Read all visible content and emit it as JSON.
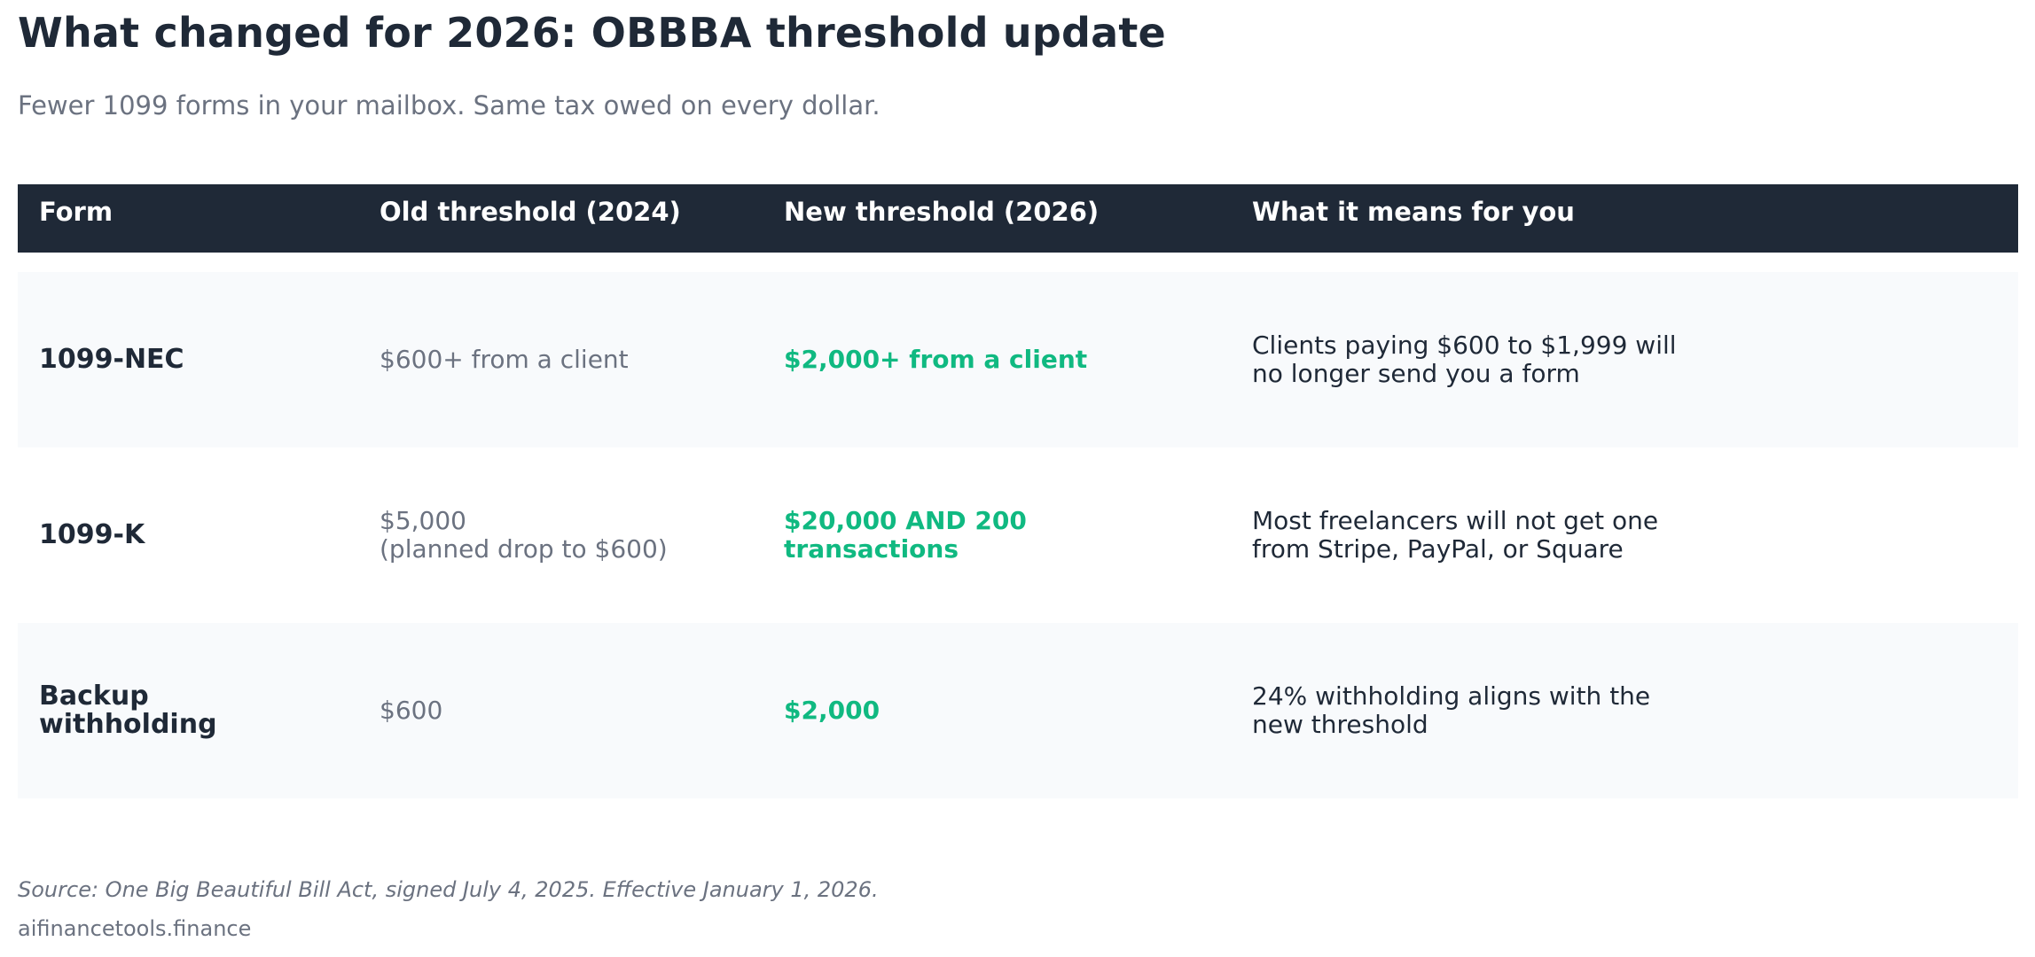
{
  "title": "What changed for 2026: OBBBA threshold update",
  "subtitle": "Fewer 1099 forms in your mailbox. Same tax owed on every dollar.",
  "table": {
    "headers": [
      "Form",
      "Old threshold (2024)",
      "New threshold (2026)",
      "What it means for you"
    ],
    "rows": [
      {
        "form": "1099-NEC",
        "old": "$600+ from a client",
        "new": "$2,000+ from a client",
        "means": "Clients paying $600 to $1,999 will\nno longer send you a form"
      },
      {
        "form": "1099-K",
        "old": "$5,000\n(planned drop to $600)",
        "new": "$20,000 AND 200\ntransactions",
        "means": "Most freelancers will not get one\nfrom Stripe, PayPal, or Square"
      },
      {
        "form": "Backup\nwithholding",
        "old": "$600",
        "new": "$2,000",
        "means": "24% withholding aligns with the\nnew threshold"
      }
    ]
  },
  "footer": {
    "source": "Source: One Big Beautiful Bill Act, signed July 4, 2025. Effective January 1, 2026.",
    "site": "aifinancetools.finance"
  },
  "colors": {
    "header_bg": "#1f2937",
    "new_value": "#10b981",
    "muted": "#6b7280",
    "row_shade": "#f8fafc"
  }
}
